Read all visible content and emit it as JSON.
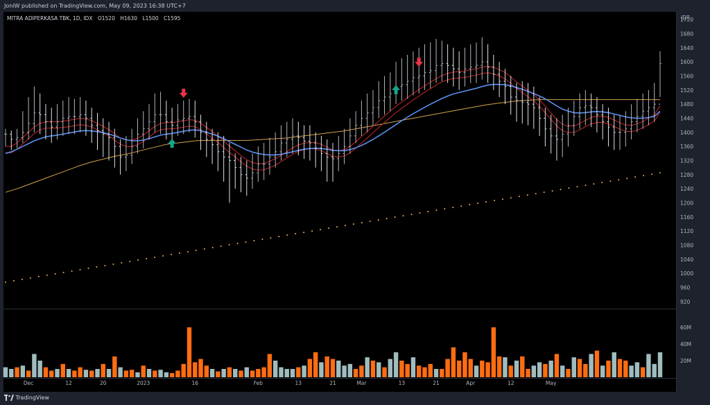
{
  "header": {
    "published_by": "JoniW published on TradingView.com, May 09, 2023 16:38 UTC+7"
  },
  "footer": {
    "brand": "TradingView"
  },
  "symbol": {
    "name": "MITRA ADIPERKASA TBK, 1D, IDX",
    "open_label": "O",
    "open": "1520",
    "high_label": "H",
    "high": "1630",
    "low_label": "L",
    "low": "1500",
    "close_label": "C",
    "close": "1595"
  },
  "price_axis": {
    "currency": "IDR",
    "ticks": [
      1720,
      1680,
      1640,
      1600,
      1560,
      1520,
      1480,
      1440,
      1400,
      1360,
      1320,
      1280,
      1240,
      1200,
      1160,
      1120,
      1080,
      1040,
      1000,
      960,
      920
    ]
  },
  "volume_axis": {
    "ticks": [
      "60M",
      "40M",
      "20M"
    ]
  },
  "colors": {
    "background": "#000000",
    "frame": "#1e222d",
    "bar_up": "#b2b5be",
    "bar_down": "#e0e3eb",
    "ma_fast": "#c62828",
    "ma_mid": "#5b8ff0",
    "ma_slow": "#d4a34b",
    "ma_dotted": "#f2b84b",
    "vol_up": "#9fbcbf",
    "vol_down": "#ff6d12",
    "arrow_up": "#15a58a",
    "arrow_down": "#e8344a"
  },
  "chart_data": {
    "type": "ohlc",
    "x_tick_labels": [
      "Dec",
      "12",
      "20",
      "2023",
      "16",
      "Feb",
      "13",
      "21",
      "Mar",
      "13",
      "21",
      "Apr",
      "12",
      "May"
    ],
    "x_tick_positions": [
      4,
      11,
      17,
      24,
      33,
      44,
      51,
      57,
      62,
      69,
      75,
      81,
      88,
      95
    ],
    "ylim": [
      900,
      1740
    ],
    "volume_ylim": [
      0,
      80
    ],
    "close": [
      1395,
      1380,
      1385,
      1400,
      1425,
      1455,
      1450,
      1430,
      1415,
      1430,
      1440,
      1445,
      1445,
      1450,
      1440,
      1420,
      1405,
      1395,
      1385,
      1360,
      1330,
      1335,
      1360,
      1395,
      1410,
      1430,
      1450,
      1450,
      1430,
      1420,
      1435,
      1440,
      1445,
      1430,
      1400,
      1380,
      1365,
      1345,
      1330,
      1320,
      1300,
      1280,
      1270,
      1285,
      1310,
      1310,
      1330,
      1345,
      1370,
      1380,
      1390,
      1385,
      1375,
      1370,
      1355,
      1340,
      1330,
      1325,
      1340,
      1360,
      1390,
      1420,
      1440,
      1455,
      1470,
      1490,
      1500,
      1510,
      1530,
      1535,
      1545,
      1555,
      1560,
      1570,
      1575,
      1590,
      1595,
      1590,
      1580,
      1570,
      1580,
      1585,
      1590,
      1600,
      1585,
      1565,
      1545,
      1530,
      1500,
      1490,
      1485,
      1480,
      1470,
      1440,
      1410,
      1390,
      1380,
      1395,
      1420,
      1445,
      1470,
      1475,
      1470,
      1450,
      1430,
      1415,
      1400,
      1400,
      1410,
      1430,
      1445,
      1460,
      1470,
      1480,
      1595
    ],
    "high": [
      1410,
      1405,
      1410,
      1460,
      1500,
      1530,
      1510,
      1480,
      1470,
      1480,
      1490,
      1500,
      1495,
      1500,
      1490,
      1470,
      1455,
      1440,
      1430,
      1410,
      1380,
      1390,
      1410,
      1440,
      1460,
      1480,
      1510,
      1515,
      1490,
      1470,
      1480,
      1490,
      1495,
      1490,
      1450,
      1430,
      1410,
      1400,
      1390,
      1370,
      1340,
      1330,
      1320,
      1340,
      1360,
      1370,
      1385,
      1400,
      1420,
      1430,
      1440,
      1430,
      1420,
      1420,
      1400,
      1390,
      1380,
      1370,
      1390,
      1410,
      1440,
      1460,
      1490,
      1510,
      1520,
      1545,
      1560,
      1570,
      1600,
      1610,
      1620,
      1630,
      1640,
      1650,
      1655,
      1665,
      1660,
      1650,
      1640,
      1630,
      1640,
      1650,
      1655,
      1670,
      1650,
      1620,
      1600,
      1580,
      1560,
      1540,
      1545,
      1540,
      1530,
      1500,
      1470,
      1450,
      1440,
      1450,
      1470,
      1490,
      1510,
      1520,
      1510,
      1500,
      1480,
      1470,
      1450,
      1450,
      1460,
      1480,
      1495,
      1510,
      1520,
      1540,
      1630
    ],
    "low": [
      1360,
      1350,
      1355,
      1370,
      1380,
      1400,
      1395,
      1380,
      1370,
      1380,
      1390,
      1395,
      1395,
      1400,
      1390,
      1370,
      1350,
      1330,
      1320,
      1300,
      1280,
      1290,
      1310,
      1340,
      1355,
      1380,
      1400,
      1395,
      1380,
      1370,
      1390,
      1395,
      1400,
      1385,
      1350,
      1330,
      1310,
      1290,
      1260,
      1200,
      1240,
      1230,
      1220,
      1240,
      1260,
      1265,
      1280,
      1300,
      1320,
      1330,
      1340,
      1335,
      1325,
      1320,
      1300,
      1290,
      1260,
      1260,
      1290,
      1310,
      1340,
      1370,
      1390,
      1400,
      1420,
      1440,
      1450,
      1460,
      1480,
      1490,
      1495,
      1505,
      1510,
      1520,
      1525,
      1540,
      1545,
      1540,
      1530,
      1520,
      1530,
      1540,
      1540,
      1550,
      1540,
      1520,
      1500,
      1480,
      1450,
      1430,
      1425,
      1420,
      1410,
      1390,
      1360,
      1340,
      1320,
      1330,
      1360,
      1390,
      1410,
      1420,
      1415,
      1400,
      1380,
      1360,
      1350,
      1350,
      1360,
      1380,
      1400,
      1410,
      1420,
      1430,
      1500
    ],
    "ma_fast": [
      1360,
      1360,
      1370,
      1385,
      1400,
      1415,
      1425,
      1430,
      1430,
      1430,
      1432,
      1434,
      1437,
      1440,
      1438,
      1433,
      1425,
      1417,
      1408,
      1396,
      1384,
      1378,
      1378,
      1383,
      1392,
      1404,
      1417,
      1425,
      1428,
      1428,
      1430,
      1433,
      1436,
      1434,
      1426,
      1414,
      1402,
      1389,
      1375,
      1361,
      1348,
      1334,
      1322,
      1314,
      1311,
      1312,
      1318,
      1325,
      1335,
      1345,
      1356,
      1364,
      1369,
      1372,
      1371,
      1366,
      1358,
      1350,
      1348,
      1351,
      1360,
      1373,
      1388,
      1402,
      1417,
      1432,
      1446,
      1460,
      1474,
      1486,
      1498,
      1510,
      1521,
      1532,
      1542,
      1552,
      1561,
      1567,
      1571,
      1572,
      1574,
      1577,
      1580,
      1585,
      1587,
      1584,
      1578,
      1570,
      1557,
      1543,
      1531,
      1519,
      1507,
      1492,
      1474,
      1455,
      1436,
      1423,
      1417,
      1418,
      1425,
      1434,
      1442,
      1446,
      1446,
      1442,
      1435,
      1427,
      1421,
      1420,
      1424,
      1431,
      1440,
      1450,
      1475
    ],
    "ma_mid": [
      1340,
      1345,
      1352,
      1360,
      1368,
      1376,
      1382,
      1387,
      1390,
      1392,
      1395,
      1398,
      1401,
      1404,
      1405,
      1404,
      1402,
      1399,
      1395,
      1390,
      1384,
      1379,
      1376,
      1376,
      1378,
      1382,
      1387,
      1392,
      1395,
      1397,
      1400,
      1403,
      1406,
      1407,
      1405,
      1400,
      1395,
      1389,
      1382,
      1374,
      1366,
      1358,
      1350,
      1344,
      1340,
      1337,
      1336,
      1336,
      1338,
      1341,
      1345,
      1349,
      1352,
      1354,
      1355,
      1354,
      1352,
      1349,
      1348,
      1348,
      1351,
      1356,
      1363,
      1371,
      1380,
      1390,
      1400,
      1411,
      1422,
      1433,
      1443,
      1453,
      1462,
      1471,
      1480,
      1488,
      1496,
      1503,
      1509,
      1513,
      1517,
      1521,
      1525,
      1530,
      1534,
      1536,
      1536,
      1535,
      1532,
      1527,
      1522,
      1516,
      1510,
      1503,
      1495,
      1485,
      1475,
      1466,
      1460,
      1456,
      1455,
      1456,
      1458,
      1459,
      1458,
      1456,
      1452,
      1448,
      1444,
      1441,
      1440,
      1440,
      1442,
      1445,
      1460
    ],
    "ma_slow": [
      1230,
      1235,
      1240,
      1246,
      1252,
      1258,
      1264,
      1270,
      1276,
      1282,
      1288,
      1294,
      1300,
      1306,
      1311,
      1316,
      1320,
      1324,
      1328,
      1332,
      1335,
      1338,
      1342,
      1346,
      1350,
      1354,
      1358,
      1362,
      1366,
      1368,
      1370,
      1372,
      1374,
      1376,
      1377,
      1377,
      1377,
      1377,
      1377,
      1377,
      1377,
      1377,
      1377,
      1378,
      1379,
      1380,
      1381,
      1382,
      1383,
      1384,
      1386,
      1388,
      1390,
      1392,
      1394,
      1396,
      1398,
      1400,
      1402,
      1404,
      1407,
      1410,
      1413,
      1416,
      1419,
      1422,
      1425,
      1428,
      1431,
      1434,
      1437,
      1440,
      1443,
      1446,
      1449,
      1452,
      1455,
      1458,
      1461,
      1464,
      1467,
      1470,
      1473,
      1476,
      1479,
      1481,
      1483,
      1485,
      1487,
      1489,
      1490,
      1491,
      1492,
      1493,
      1493,
      1493,
      1493,
      1493,
      1493,
      1493,
      1493,
      1493,
      1493,
      1493,
      1493,
      1493,
      1493,
      1493,
      1493,
      1493,
      1493,
      1493,
      1493,
      1493,
      1493
    ],
    "ma_dotted_start": 975,
    "ma_dotted_end": 1285,
    "signals": [
      {
        "type": "down",
        "index": 31,
        "price": 1512
      },
      {
        "type": "up",
        "index": 29,
        "price": 1368
      },
      {
        "type": "up",
        "index": 68,
        "price": 1520
      },
      {
        "type": "down",
        "index": 72,
        "price": 1600
      }
    ],
    "volume": [
      12,
      10,
      12,
      14,
      8,
      28,
      20,
      12,
      8,
      10,
      16,
      10,
      8,
      12,
      9,
      8,
      10,
      16,
      10,
      25,
      12,
      8,
      9,
      6,
      14,
      10,
      8,
      9,
      6,
      5,
      8,
      16,
      60,
      18,
      22,
      14,
      10,
      7,
      10,
      12,
      10,
      8,
      12,
      8,
      10,
      12,
      28,
      20,
      12,
      10,
      10,
      12,
      14,
      22,
      30,
      18,
      25,
      22,
      20,
      14,
      16,
      10,
      14,
      24,
      20,
      18,
      12,
      22,
      30,
      20,
      16,
      24,
      14,
      12,
      16,
      10,
      10,
      22,
      36,
      20,
      30,
      22,
      14,
      20,
      18,
      60,
      25,
      24,
      14,
      20,
      25,
      10,
      14,
      18,
      16,
      20,
      28,
      14,
      10,
      24,
      22,
      16,
      28,
      32,
      14,
      20,
      30,
      22,
      20,
      14,
      18,
      12,
      28,
      16,
      30
    ],
    "volume_is_up": [
      true,
      true,
      false,
      true,
      false,
      true,
      true,
      false,
      false,
      true,
      false,
      true,
      false,
      false,
      true,
      false,
      true,
      false,
      true,
      false,
      true,
      false,
      false,
      true,
      false,
      true,
      false,
      true,
      true,
      false,
      false,
      false,
      false,
      false,
      false,
      false,
      true,
      false,
      true,
      false,
      true,
      false,
      true,
      false,
      false,
      false,
      false,
      true,
      true,
      true,
      true,
      false,
      true,
      false,
      false,
      true,
      false,
      false,
      true,
      true,
      true,
      false,
      false,
      true,
      false,
      true,
      false,
      true,
      true,
      false,
      false,
      true,
      false,
      false,
      false,
      true,
      false,
      false,
      false,
      false,
      false,
      false,
      true,
      false,
      false,
      false,
      false,
      true,
      false,
      true,
      false,
      false,
      true,
      true,
      false,
      true,
      false,
      true,
      false,
      true,
      false,
      false,
      true,
      false,
      true,
      false,
      true,
      false,
      false,
      true,
      true,
      false,
      true,
      true,
      true
    ]
  }
}
